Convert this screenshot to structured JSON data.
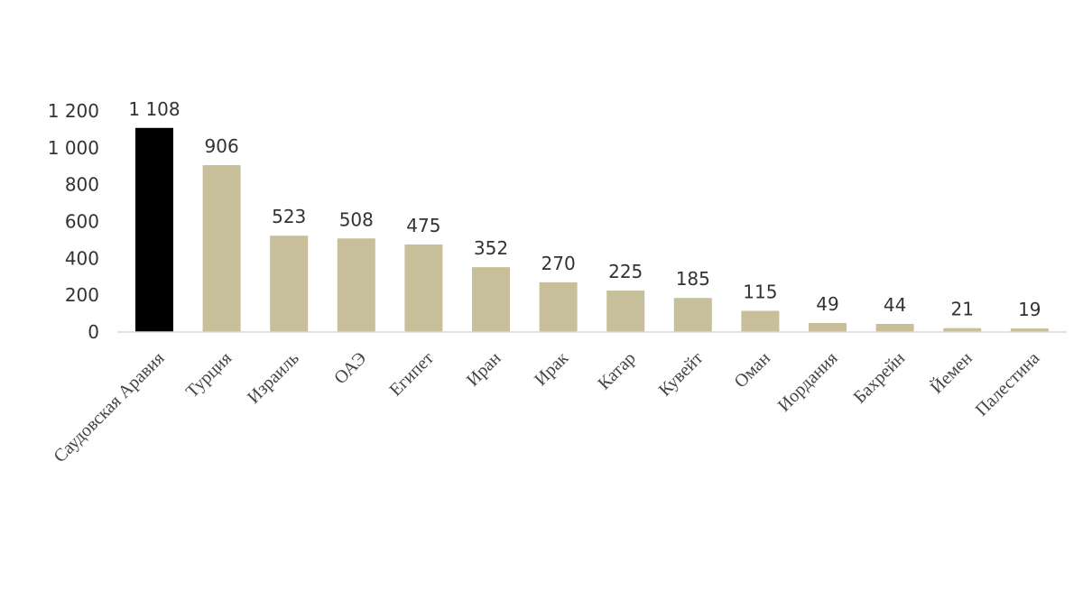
{
  "chart_data": {
    "type": "bar",
    "categories": [
      "Саудовская Аравия",
      "Турция",
      "Израиль",
      "ОАЭ",
      "Египет",
      "Иран",
      "Ирак",
      "Катар",
      "Кувейт",
      "Оман",
      "Иордания",
      "Бахрейн",
      "Йемен",
      "Палестина"
    ],
    "values": [
      1108,
      906,
      523,
      508,
      475,
      352,
      270,
      225,
      185,
      115,
      49,
      44,
      21,
      19
    ],
    "data_labels": [
      "1 108",
      "906",
      "523",
      "508",
      "475",
      "352",
      "270",
      "225",
      "185",
      "115",
      "49",
      "44",
      "21",
      "19"
    ],
    "y_ticks": [
      0,
      200,
      400,
      600,
      800,
      1000,
      1200
    ],
    "y_tick_labels": [
      "0",
      "200",
      "400",
      "600",
      "800",
      "1 000",
      "1 200"
    ],
    "ylim": [
      0,
      1200
    ],
    "grid": false,
    "legend": "none",
    "colors": {
      "highlight": "#000000",
      "bar": "#c6bf9a",
      "axis": "#d9d9d9"
    },
    "highlight_index": 0
  }
}
